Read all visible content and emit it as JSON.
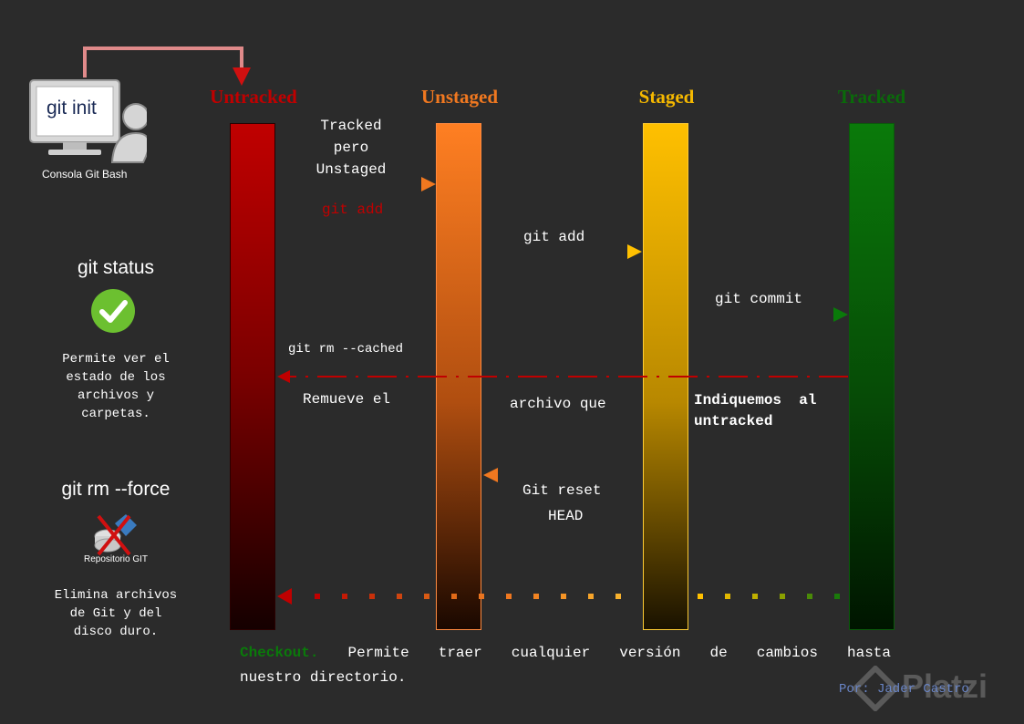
{
  "columns": [
    {
      "title": "Untracked",
      "color": "#c00000"
    },
    {
      "title": "Unstaged",
      "color": "#f07820"
    },
    {
      "title": "Staged",
      "color": "#f5b800"
    },
    {
      "title": "Tracked",
      "color": "#0a6a0a"
    }
  ],
  "git_init": {
    "label": "git init",
    "caption": "Consola Git Bash"
  },
  "git_status": {
    "title": "git status",
    "description": [
      "Permite ver el",
      "estado de los",
      "archivos y",
      "carpetas."
    ]
  },
  "git_rm_force": {
    "title": "git rm --force",
    "repo_label": "Repositorio GIT",
    "description": [
      "Elimina archivos",
      "de Git y del",
      "disco duro."
    ]
  },
  "arrows": {
    "tracked_pero": [
      "Tracked",
      "pero",
      "Unstaged"
    ],
    "git_add_1": "git add",
    "git_add_2": "git add",
    "git_commit": "git commit",
    "git_rm_cached": "git rm --cached",
    "remueve_1": "Remueve el",
    "remueve_2": "archivo que",
    "remueve_3": "Indiquemos  al",
    "remueve_4": "untracked",
    "git_reset_1": "Git reset",
    "git_reset_2": "HEAD"
  },
  "checkout": {
    "keyword": "Checkout.",
    "line1": " Permite traer cualquier versión de cambios hasta",
    "line2": "nuestro directorio."
  },
  "author": "Por: Jader Castro",
  "watermark": "Platzi"
}
